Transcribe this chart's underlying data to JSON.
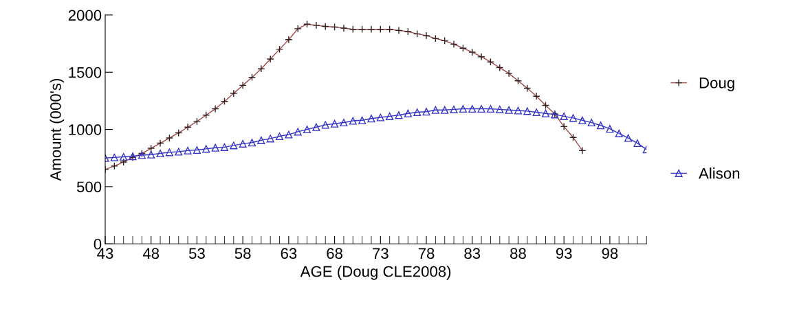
{
  "chart_data": {
    "type": "line",
    "xlabel": "AGE (Doug CLE2008)",
    "ylabel": "Amount (000's)",
    "xlim": [
      43,
      102
    ],
    "ylim": [
      0,
      2000
    ],
    "xticks": [
      43,
      {
        "value": 44,
        "label": null
      },
      {
        "value": 45,
        "label": null
      },
      {
        "value": 46,
        "label": null
      },
      {
        "value": 47,
        "label": null
      },
      48,
      {
        "value": 49,
        "label": null
      },
      {
        "value": 50,
        "label": null
      },
      {
        "value": 51,
        "label": null
      },
      {
        "value": 52,
        "label": null
      },
      53,
      {
        "value": 54,
        "label": null
      },
      {
        "value": 55,
        "label": null
      },
      {
        "value": 56,
        "label": null
      },
      {
        "value": 57,
        "label": null
      },
      58,
      {
        "value": 59,
        "label": null
      },
      {
        "value": 60,
        "label": null
      },
      {
        "value": 61,
        "label": null
      },
      {
        "value": 62,
        "label": null
      },
      63,
      {
        "value": 64,
        "label": null
      },
      {
        "value": 65,
        "label": null
      },
      {
        "value": 66,
        "label": null
      },
      {
        "value": 67,
        "label": null
      },
      68,
      {
        "value": 69,
        "label": null
      },
      {
        "value": 70,
        "label": null
      },
      {
        "value": 71,
        "label": null
      },
      {
        "value": 72,
        "label": null
      },
      73,
      {
        "value": 74,
        "label": null
      },
      {
        "value": 75,
        "label": null
      },
      {
        "value": 76,
        "label": null
      },
      {
        "value": 77,
        "label": null
      },
      78,
      {
        "value": 79,
        "label": null
      },
      {
        "value": 80,
        "label": null
      },
      {
        "value": 81,
        "label": null
      },
      {
        "value": 82,
        "label": null
      },
      83,
      {
        "value": 84,
        "label": null
      },
      {
        "value": 85,
        "label": null
      },
      {
        "value": 86,
        "label": null
      },
      {
        "value": 87,
        "label": null
      },
      88,
      {
        "value": 89,
        "label": null
      },
      {
        "value": 90,
        "label": null
      },
      {
        "value": 91,
        "label": null
      },
      {
        "value": 92,
        "label": null
      },
      93,
      {
        "value": 94,
        "label": null
      },
      {
        "value": 95,
        "label": null
      },
      {
        "value": 96,
        "label": null
      },
      {
        "value": 97,
        "label": null
      },
      98,
      {
        "value": 99,
        "label": null
      },
      {
        "value": 100,
        "label": null
      },
      {
        "value": 101,
        "label": null
      },
      {
        "value": 102,
        "label": null
      }
    ],
    "yticks": [
      0,
      500,
      1000,
      1500,
      2000
    ],
    "grid": false,
    "legend": "right",
    "line_style": "solid",
    "series": [
      {
        "name": "Doug",
        "color": "#a04848",
        "marker": "cross",
        "x": [
          43,
          44,
          45,
          46,
          47,
          48,
          49,
          50,
          51,
          52,
          53,
          54,
          55,
          56,
          57,
          58,
          59,
          60,
          61,
          62,
          63,
          64,
          65,
          66,
          67,
          68,
          69,
          70,
          71,
          72,
          73,
          74,
          75,
          76,
          77,
          78,
          79,
          80,
          81,
          82,
          83,
          84,
          85,
          86,
          87,
          88,
          89,
          90,
          91,
          92,
          93,
          94,
          95
        ],
        "values": [
          650,
          680,
          715,
          755,
          790,
          835,
          880,
          925,
          970,
          1020,
          1070,
          1125,
          1180,
          1245,
          1315,
          1385,
          1455,
          1530,
          1615,
          1700,
          1785,
          1880,
          1920,
          1910,
          1900,
          1895,
          1885,
          1875,
          1875,
          1875,
          1875,
          1875,
          1865,
          1855,
          1835,
          1820,
          1795,
          1775,
          1745,
          1710,
          1675,
          1635,
          1590,
          1540,
          1490,
          1425,
          1360,
          1290,
          1210,
          1135,
          1025,
          930,
          815
        ]
      },
      {
        "name": "Alison",
        "color": "#3434c4",
        "marker": "triangle",
        "x": [
          43,
          44,
          45,
          46,
          47,
          48,
          49,
          50,
          51,
          52,
          53,
          54,
          55,
          56,
          57,
          58,
          59,
          60,
          61,
          62,
          63,
          64,
          65,
          66,
          67,
          68,
          69,
          70,
          71,
          72,
          73,
          74,
          75,
          76,
          77,
          78,
          79,
          80,
          81,
          82,
          83,
          84,
          85,
          86,
          87,
          88,
          89,
          90,
          91,
          92,
          93,
          94,
          95,
          96,
          97,
          98,
          99,
          100,
          101,
          102
        ],
        "values": [
          750,
          755,
          760,
          765,
          775,
          780,
          790,
          800,
          805,
          815,
          820,
          830,
          840,
          845,
          860,
          875,
          885,
          905,
          920,
          940,
          955,
          980,
          1000,
          1020,
          1040,
          1050,
          1060,
          1075,
          1080,
          1095,
          1105,
          1115,
          1125,
          1140,
          1150,
          1155,
          1170,
          1170,
          1175,
          1180,
          1180,
          1180,
          1180,
          1175,
          1170,
          1165,
          1160,
          1150,
          1140,
          1130,
          1115,
          1100,
          1080,
          1060,
          1035,
          1005,
          965,
          925,
          880,
          825
        ]
      }
    ]
  }
}
